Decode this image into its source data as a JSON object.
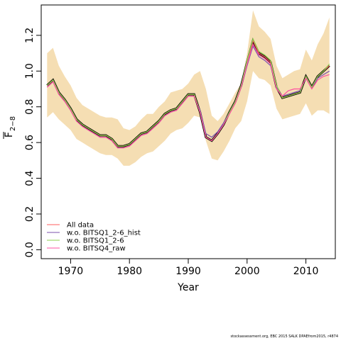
{
  "footer": "stockassessment.org, EBC 2015 SALK DPAEfrom2015, r4874",
  "colors": {
    "ci_band": "#f5deb3",
    "all_data": "#ff5c5c",
    "wo_q1_hist": "#7b52ae",
    "wo_q1": "#8fd14f",
    "wo_q4_raw": "#ff4fa0",
    "black": "#000000"
  },
  "chart_data": {
    "type": "line",
    "xlabel": "Year",
    "ylabel_main": "F",
    "ylabel_sub": "2−8",
    "xlim": [
      1965,
      2015
    ],
    "ylim": [
      -0.05,
      1.37
    ],
    "xticks": [
      1970,
      1980,
      1990,
      2000,
      2010
    ],
    "yticks": [
      0.0,
      0.2,
      0.4,
      0.6,
      0.8,
      1.0,
      1.2
    ],
    "ytick_labels": [
      "0.0",
      "0.2",
      "0.4",
      "0.6",
      "0.8",
      "1.0",
      "1.2"
    ],
    "legend_position": "bottom-left",
    "x": [
      1966,
      1967,
      1968,
      1969,
      1970,
      1971,
      1972,
      1973,
      1974,
      1975,
      1976,
      1977,
      1978,
      1979,
      1980,
      1981,
      1982,
      1983,
      1984,
      1985,
      1986,
      1987,
      1988,
      1989,
      1990,
      1991,
      1992,
      1993,
      1994,
      1995,
      1996,
      1997,
      1998,
      1999,
      2000,
      2001,
      2002,
      2003,
      2004,
      2005,
      2006,
      2007,
      2008,
      2009,
      2010,
      2011,
      2012,
      2013,
      2014
    ],
    "ci_upper": [
      1.1,
      1.13,
      1.03,
      0.97,
      0.92,
      0.85,
      0.81,
      0.79,
      0.77,
      0.75,
      0.74,
      0.74,
      0.73,
      0.68,
      0.67,
      0.69,
      0.73,
      0.76,
      0.76,
      0.8,
      0.83,
      0.88,
      0.89,
      0.9,
      0.93,
      0.98,
      1.0,
      0.9,
      0.75,
      0.72,
      0.76,
      0.82,
      0.88,
      0.93,
      1.1,
      1.34,
      1.25,
      1.22,
      1.18,
      1.03,
      0.96,
      0.98,
      1.0,
      1.01,
      1.12,
      1.06,
      1.15,
      1.21,
      1.3
    ],
    "ci_lower": [
      0.74,
      0.77,
      0.73,
      0.7,
      0.67,
      0.62,
      0.6,
      0.58,
      0.56,
      0.54,
      0.53,
      0.53,
      0.51,
      0.47,
      0.47,
      0.49,
      0.52,
      0.54,
      0.55,
      0.58,
      0.61,
      0.65,
      0.67,
      0.68,
      0.71,
      0.75,
      0.74,
      0.61,
      0.51,
      0.5,
      0.55,
      0.61,
      0.68,
      0.72,
      0.83,
      1.0,
      0.96,
      0.95,
      0.92,
      0.79,
      0.73,
      0.74,
      0.75,
      0.76,
      0.82,
      0.75,
      0.78,
      0.78,
      0.76
    ],
    "series": [
      {
        "name": "All data",
        "color_key": "all_data",
        "values": [
          0.92,
          0.95,
          0.88,
          0.84,
          0.79,
          0.73,
          0.7,
          0.68,
          0.66,
          0.64,
          0.64,
          0.62,
          0.58,
          0.58,
          0.59,
          0.62,
          0.65,
          0.66,
          0.69,
          0.72,
          0.76,
          0.78,
          0.79,
          0.83,
          0.87,
          0.87,
          0.77,
          0.63,
          0.61,
          0.65,
          0.7,
          0.77,
          0.83,
          0.92,
          1.05,
          1.17,
          1.1,
          1.08,
          1.05,
          0.91,
          0.85,
          0.86,
          0.87,
          0.88,
          0.97,
          0.91,
          0.97,
          1.0,
          1.03
        ]
      },
      {
        "name": "w.o. BITSQ1_2-6_hist",
        "color_key": "wo_q1_hist",
        "values": [
          0.91,
          0.94,
          0.87,
          0.83,
          0.78,
          0.72,
          0.69,
          0.67,
          0.65,
          0.63,
          0.63,
          0.61,
          0.57,
          0.57,
          0.58,
          0.61,
          0.64,
          0.65,
          0.68,
          0.71,
          0.75,
          0.77,
          0.78,
          0.82,
          0.86,
          0.86,
          0.78,
          0.65,
          0.63,
          0.66,
          0.71,
          0.77,
          0.83,
          0.91,
          1.03,
          1.14,
          1.08,
          1.06,
          1.03,
          0.91,
          0.86,
          0.87,
          0.88,
          0.89,
          0.96,
          0.91,
          0.96,
          0.98,
          1.0
        ]
      },
      {
        "name": "w.o. BITSQ1_2-6",
        "color_key": "wo_q1",
        "values": [
          0.92,
          0.95,
          0.88,
          0.84,
          0.79,
          0.73,
          0.7,
          0.68,
          0.66,
          0.64,
          0.64,
          0.62,
          0.58,
          0.58,
          0.59,
          0.62,
          0.65,
          0.66,
          0.69,
          0.72,
          0.76,
          0.78,
          0.79,
          0.83,
          0.87,
          0.87,
          0.77,
          0.63,
          0.61,
          0.65,
          0.7,
          0.77,
          0.83,
          0.92,
          1.06,
          1.18,
          1.11,
          1.09,
          1.06,
          0.92,
          0.85,
          0.86,
          0.87,
          0.88,
          0.97,
          0.91,
          0.97,
          1.0,
          1.04
        ]
      },
      {
        "name": "w.o. BITSQ4_raw",
        "color_key": "wo_q4_raw",
        "values": [
          0.91,
          0.94,
          0.87,
          0.83,
          0.78,
          0.72,
          0.69,
          0.67,
          0.65,
          0.63,
          0.63,
          0.61,
          0.57,
          0.57,
          0.58,
          0.61,
          0.64,
          0.65,
          0.68,
          0.71,
          0.75,
          0.77,
          0.78,
          0.82,
          0.86,
          0.86,
          0.77,
          0.63,
          0.61,
          0.65,
          0.7,
          0.76,
          0.82,
          0.91,
          1.04,
          1.15,
          1.09,
          1.07,
          1.04,
          0.9,
          0.86,
          0.89,
          0.9,
          0.9,
          0.96,
          0.9,
          0.95,
          0.97,
          0.98
        ]
      }
    ],
    "reference_line": {
      "color_key": "black",
      "values": [
        0.92,
        0.95,
        0.88,
        0.84,
        0.79,
        0.73,
        0.7,
        0.68,
        0.66,
        0.64,
        0.64,
        0.62,
        0.58,
        0.58,
        0.59,
        0.62,
        0.65,
        0.66,
        0.69,
        0.72,
        0.76,
        0.78,
        0.79,
        0.83,
        0.87,
        0.87,
        0.77,
        0.63,
        0.61,
        0.65,
        0.7,
        0.77,
        0.83,
        0.92,
        1.05,
        1.17,
        1.1,
        1.08,
        1.05,
        0.91,
        0.85,
        0.86,
        0.87,
        0.88,
        0.97,
        0.91,
        0.97,
        1.0,
        1.03
      ]
    }
  }
}
